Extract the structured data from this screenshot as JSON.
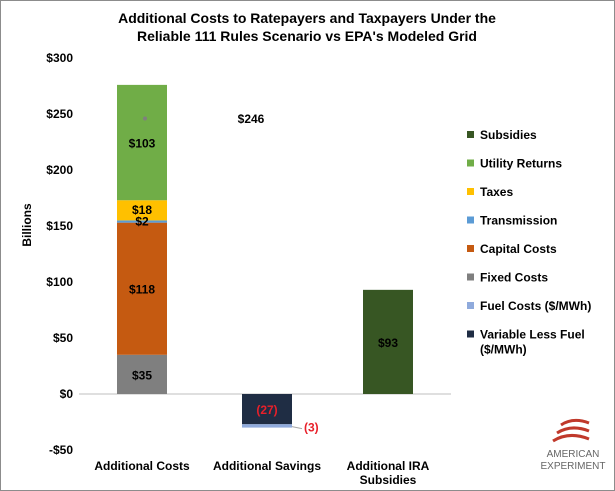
{
  "chart_data": {
    "type": "bar",
    "stacked": true,
    "title_lines": [
      "Additional Costs to Ratepayers and Taxpayers Under the",
      "Reliable 111 Rules Scenario vs EPA's Modeled Grid"
    ],
    "ylabel": "Billions",
    "ylim": [
      -50,
      300
    ],
    "yticks": [
      -50,
      0,
      50,
      100,
      150,
      200,
      250,
      300
    ],
    "ytick_labels": [
      "-$50",
      "$0",
      "$50",
      "$100",
      "$150",
      "$200",
      "$250",
      "$300"
    ],
    "categories": [
      {
        "label_lines": [
          "Additional Costs"
        ]
      },
      {
        "label_lines": [
          "Additional Savings"
        ]
      },
      {
        "label_lines": [
          "Additional IRA",
          "Subsidies"
        ]
      }
    ],
    "series": [
      {
        "name": "Variable Less Fuel",
        "name2": "($/MWh)",
        "color": "#1f2d44",
        "values": [
          0,
          -27,
          0
        ],
        "labels": [
          "",
          "(27)",
          ""
        ],
        "label_color": "#e8202a"
      },
      {
        "name": "Fuel Costs ($/MWh)",
        "color": "#8faadc",
        "values": [
          0,
          -3,
          0
        ],
        "labels": [
          "",
          "(3)",
          ""
        ],
        "label_color": "#e8202a"
      },
      {
        "name": "Fixed Costs",
        "color": "#7f7f7f",
        "values": [
          35,
          0,
          0
        ],
        "labels": [
          "$35",
          "",
          ""
        ]
      },
      {
        "name": "Capital Costs",
        "color": "#c55a11",
        "values": [
          118,
          0,
          0
        ],
        "labels": [
          "$118",
          "",
          ""
        ]
      },
      {
        "name": "Transmission",
        "color": "#5b9bd5",
        "values": [
          2,
          0,
          0
        ],
        "labels": [
          "$2",
          "",
          ""
        ]
      },
      {
        "name": "Taxes",
        "color": "#ffc000",
        "values": [
          18,
          0,
          0
        ],
        "labels": [
          "$18",
          "",
          ""
        ]
      },
      {
        "name": "Utility Returns",
        "color": "#70ad47",
        "values": [
          103,
          0,
          0
        ],
        "labels": [
          "$103",
          "",
          ""
        ]
      },
      {
        "name": "Subsidies",
        "color": "#375623",
        "values": [
          0,
          0,
          93
        ],
        "labels": [
          "",
          "",
          "$93"
        ]
      }
    ],
    "annotations": [
      {
        "text": "$246"
      }
    ],
    "legend_position": "right",
    "grid": false
  },
  "logo": {
    "line1": "AMERICAN",
    "line2": "EXPERIMENT",
    "flag_color": "#c0392b"
  }
}
